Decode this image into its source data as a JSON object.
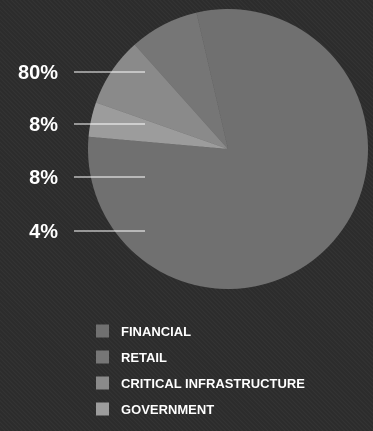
{
  "chart_data": {
    "type": "pie",
    "title": "",
    "slices": [
      {
        "name": "FINANCIAL",
        "value": 80,
        "label": "80%",
        "color": "#707070"
      },
      {
        "name": "RETAIL",
        "value": 8,
        "label": "8%",
        "color": "#767676"
      },
      {
        "name": "CRITICAL INFRASTRUCTURE",
        "value": 8,
        "label": "8%",
        "color": "#8a8a8a"
      },
      {
        "name": "GOVERNMENT",
        "value": 4,
        "label": "4%",
        "color": "#9c9c9c"
      }
    ],
    "legend_position": "bottom"
  }
}
